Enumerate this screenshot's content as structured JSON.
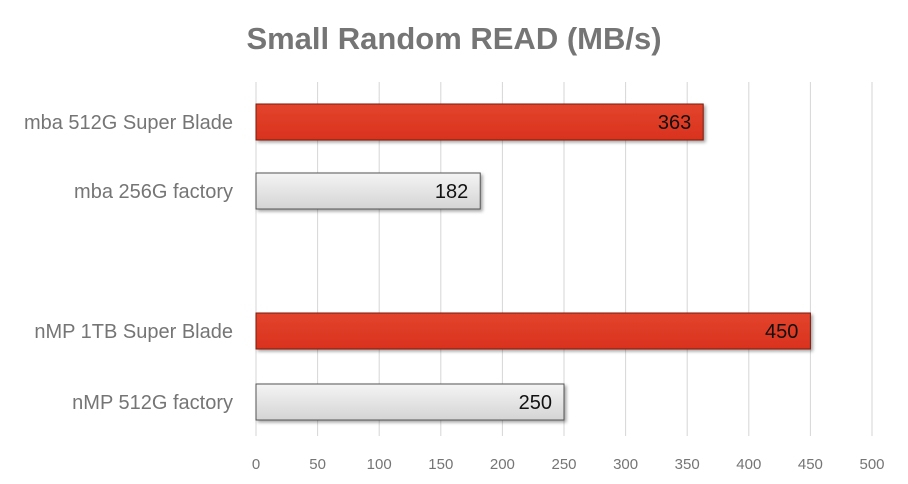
{
  "chart_data": {
    "type": "bar",
    "orientation": "horizontal",
    "title": "Small Random READ (MB/s)",
    "xlabel": "",
    "ylabel": "",
    "xlim": [
      0,
      500
    ],
    "ticks": [
      0,
      50,
      100,
      150,
      200,
      250,
      300,
      350,
      400,
      450,
      500
    ],
    "grid": true,
    "categories": [
      "mba 512G Super Blade",
      "mba 256G factory",
      "nMP 1TB Super Blade",
      "nMP 512G factory"
    ],
    "values": [
      363,
      182,
      450,
      250
    ],
    "colors": {
      "super_blade": "#d9321e",
      "factory": "#e3e3e3"
    }
  }
}
